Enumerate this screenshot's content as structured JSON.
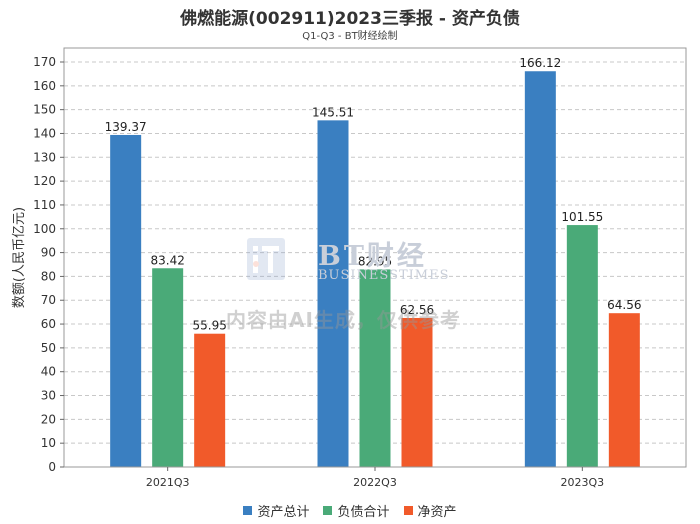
{
  "header": {
    "title": "佛燃能源(002911)2023三季报 - 资产负债",
    "subtitle": "Q1-Q3 - BT财经绘制"
  },
  "watermark": {
    "brand": "BT财经",
    "brand_en": "BUSINESSTIMES",
    "notice": "内容由AI生成，仅供参考"
  },
  "chart_data": {
    "type": "bar",
    "title": "佛燃能源(002911)2023三季报 - 资产负债",
    "subtitle": "Q1-Q3 - BT财经绘制",
    "xlabel": "",
    "ylabel": "数额(人民币亿元)",
    "categories": [
      "2021Q3",
      "2022Q3",
      "2023Q3"
    ],
    "series": [
      {
        "name": "资产总计",
        "color": "#3a7fc1",
        "values": [
          139.37,
          145.51,
          166.12
        ]
      },
      {
        "name": "负债合计",
        "color": "#4aaa78",
        "values": [
          83.42,
          82.95,
          101.55
        ]
      },
      {
        "name": "净资产",
        "color": "#f15a2a",
        "values": [
          55.95,
          62.56,
          64.56
        ]
      }
    ],
    "ylim": [
      0,
      170
    ],
    "yticks": [
      0,
      10,
      20,
      30,
      40,
      50,
      60,
      70,
      80,
      90,
      100,
      110,
      120,
      130,
      140,
      150,
      160,
      170
    ],
    "grid": true,
    "legend_position": "bottom"
  }
}
